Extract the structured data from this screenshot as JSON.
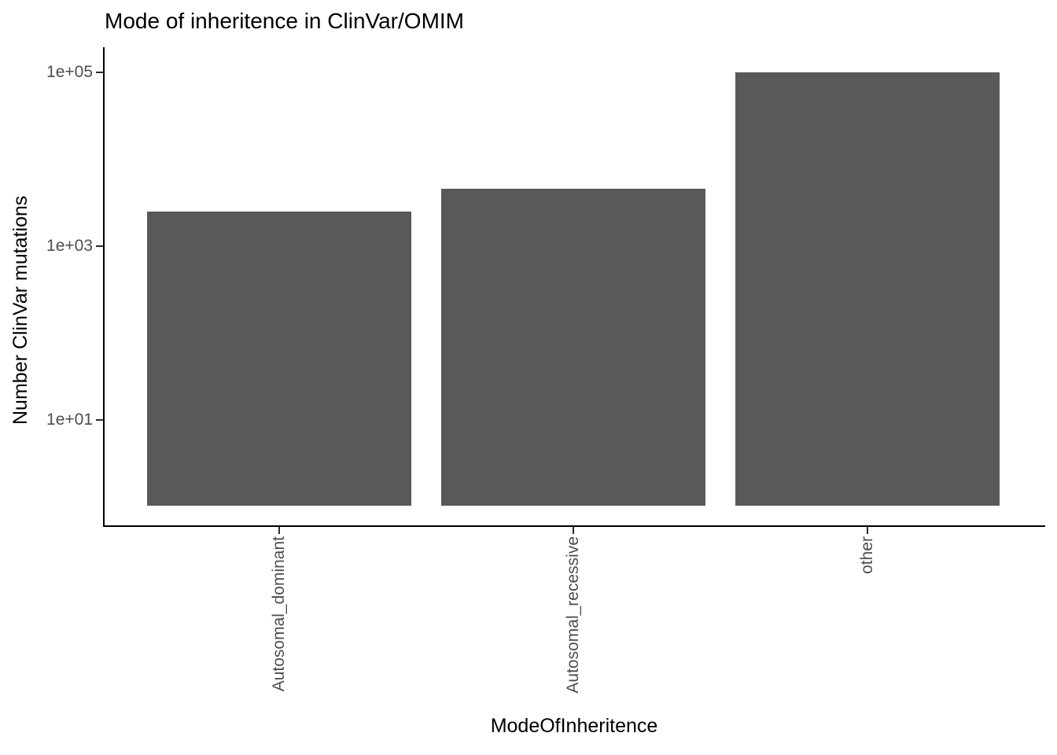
{
  "chart_data": {
    "type": "bar",
    "title": "Mode of inheritence in ClinVar/OMIM",
    "xlabel": "ModeOfInheritence",
    "ylabel": "Number ClinVar mutations",
    "categories": [
      "Autosomal_dominant",
      "Autosomal_recessive",
      "other"
    ],
    "values": [
      2500,
      4600,
      100000
    ],
    "y_scale": "log10",
    "ylim": [
      1,
      200000
    ],
    "y_ticks": [
      {
        "label": "1e+05",
        "value": 100000
      },
      {
        "label": "1e+03",
        "value": 1000
      },
      {
        "label": "1e+01",
        "value": 10
      }
    ],
    "grid": false,
    "legend": false,
    "bar_color": "#595959",
    "axis_text_color": "#4D4D4D",
    "axis_line_color": "#000000"
  }
}
